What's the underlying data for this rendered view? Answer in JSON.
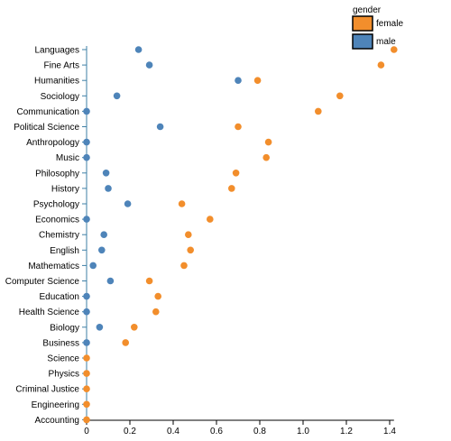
{
  "chart_data": {
    "type": "scatter",
    "categories": [
      "Languages",
      "Fine Arts",
      "Humanities",
      "Sociology",
      "Communication",
      "Political Science",
      "Anthropology",
      "Music",
      "Philosophy",
      "History",
      "Psychology",
      "Economics",
      "Chemistry",
      "English",
      "Mathematics",
      "Computer Science",
      "Education",
      "Health Science",
      "Biology",
      "Business",
      "Science",
      "Physics",
      "Criminal Justice",
      "Engineering",
      "Accounting"
    ],
    "series": [
      {
        "name": "female",
        "color": "#f28e2c",
        "values": [
          1.42,
          1.36,
          0.79,
          1.17,
          1.07,
          0.7,
          0.84,
          0.83,
          0.69,
          0.67,
          0.44,
          0.57,
          0.47,
          0.48,
          0.45,
          0.29,
          0.33,
          0.32,
          0.22,
          0.18,
          0.0,
          0.0,
          0.0,
          0.0,
          0.0
        ]
      },
      {
        "name": "male",
        "color": "#4e84b9",
        "values": [
          0.24,
          0.29,
          0.7,
          0.14,
          0.0,
          0.34,
          0.0,
          0.0,
          0.09,
          0.1,
          0.19,
          0.0,
          0.08,
          0.07,
          0.03,
          0.11,
          0.0,
          0.0,
          0.06,
          0.0,
          null,
          null,
          null,
          null,
          null
        ]
      }
    ],
    "x_ticks": [
      "0",
      "0.2",
      "0.4",
      "0.6",
      "0.8",
      "1.0",
      "1.2",
      "1.4"
    ],
    "xlim": [
      0,
      1.42
    ],
    "legend": {
      "title": "gender",
      "position": "top-right"
    }
  }
}
